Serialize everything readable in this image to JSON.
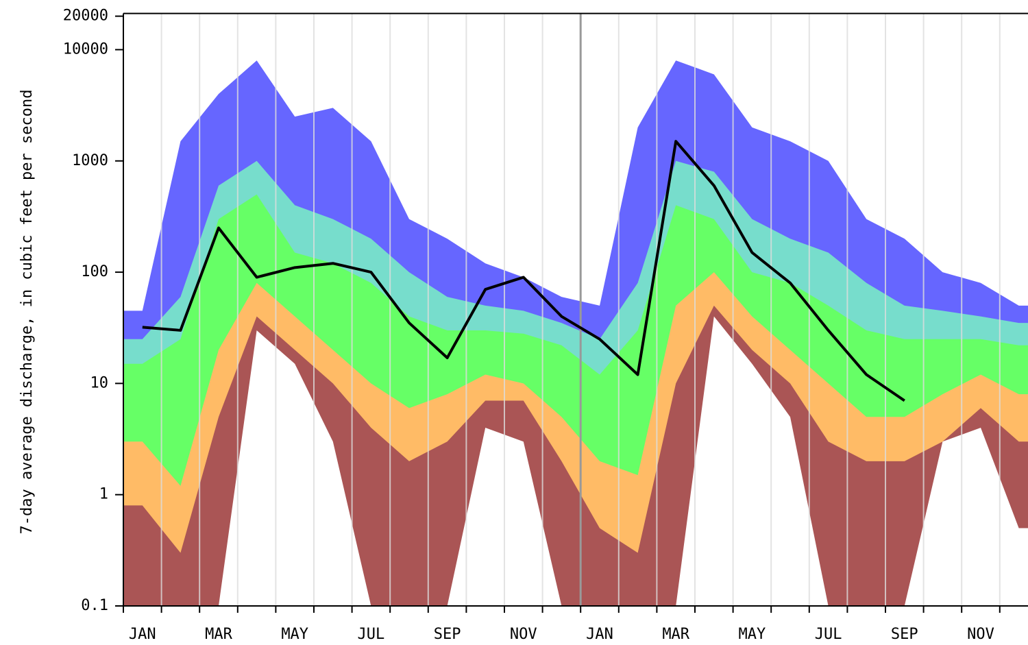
{
  "chart_data": {
    "type": "area",
    "y_label": "7-day average discharge, in cubic feet per second",
    "categories": [
      "JAN",
      null,
      "MAR",
      null,
      "MAY",
      null,
      "JUL",
      null,
      "SEP",
      null,
      "NOV",
      null,
      "JAN",
      null,
      "MAR",
      null,
      "MAY",
      null,
      "JUL",
      null,
      "SEP",
      null,
      "NOV",
      null
    ],
    "yscale": "log",
    "ylim": [
      0.1,
      20000
    ],
    "yticks": [
      0.1,
      1,
      10,
      100,
      1000,
      10000,
      20000
    ],
    "grid": true,
    "series": [
      {
        "color": "#6666ff",
        "values": [
          45,
          1500,
          4000,
          8000,
          2500,
          3000,
          1500,
          300,
          200,
          120,
          90,
          60,
          50,
          2000,
          8000,
          6000,
          2000,
          1500,
          1000,
          300,
          200,
          100,
          80,
          50
        ]
      },
      {
        "color": "#77ddcc",
        "values": [
          25,
          60,
          600,
          1000,
          400,
          300,
          200,
          100,
          60,
          50,
          45,
          35,
          25,
          80,
          1000,
          800,
          300,
          200,
          150,
          80,
          50,
          45,
          40,
          35
        ]
      },
      {
        "color": "#66ff66",
        "values": [
          15,
          25,
          300,
          500,
          150,
          120,
          80,
          40,
          30,
          30,
          28,
          22,
          12,
          30,
          400,
          300,
          100,
          80,
          50,
          30,
          25,
          25,
          25,
          22
        ]
      },
      {
        "color": "#ffbb66",
        "values": [
          3,
          1.2,
          20,
          80,
          40,
          20,
          10,
          6,
          8,
          12,
          10,
          5,
          2,
          1.5,
          50,
          100,
          40,
          20,
          10,
          5,
          5,
          8,
          12,
          8
        ]
      },
      {
        "color": "#aa5555",
        "values": [
          0.8,
          0.3,
          5,
          40,
          20,
          10,
          4,
          2,
          3,
          7,
          7,
          2,
          0.5,
          0.3,
          10,
          50,
          20,
          10,
          3,
          2,
          2,
          3,
          6,
          3
        ]
      },
      {
        "color": "#ffffff",
        "values": [
          0.1,
          0.1,
          0.1,
          30,
          15,
          3,
          0.1,
          0.1,
          0.1,
          4,
          3,
          0.1,
          0.1,
          0.1,
          0.1,
          40,
          15,
          5,
          0.1,
          0.1,
          0.1,
          3,
          4,
          0.5
        ]
      },
      {
        "color": "#000000",
        "line": true,
        "values": [
          32,
          30,
          250,
          90,
          110,
          120,
          100,
          35,
          17,
          70,
          90,
          40,
          25,
          12,
          1500,
          600,
          150,
          80,
          30,
          12,
          7,
          null,
          null,
          null
        ]
      }
    ]
  }
}
